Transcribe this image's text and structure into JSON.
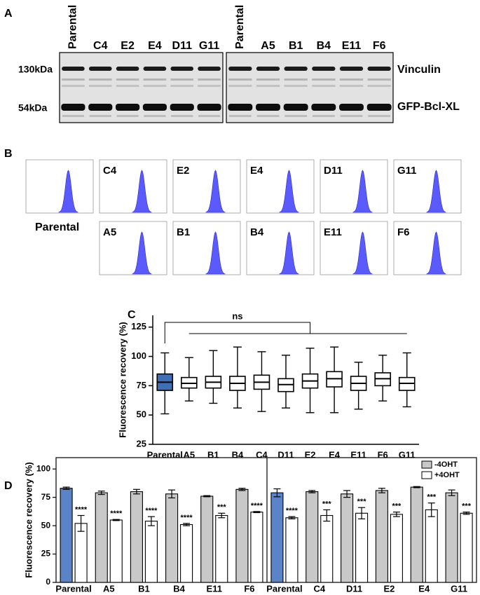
{
  "panel_labels": [
    "A",
    "B",
    "C",
    "D"
  ],
  "blot": {
    "left_lanes": [
      "Parental",
      "C4",
      "E2",
      "E4",
      "D11",
      "G11"
    ],
    "right_lanes": [
      "Parental",
      "A5",
      "B1",
      "B4",
      "E11",
      "F6"
    ],
    "markers": [
      "130kDa",
      "54kDa"
    ],
    "proteins": [
      "Vinculin",
      "GFP-Bcl-XL"
    ]
  },
  "flow": {
    "samples": [
      "Parental",
      "C4",
      "E2",
      "E4",
      "D11",
      "G11",
      "A5",
      "B1",
      "B4",
      "E11",
      "F6"
    ]
  },
  "chart_data": [
    {
      "type": "box",
      "y_label": "Fluorescence recovery (%)",
      "categories": [
        "Parental",
        "A5",
        "B1",
        "B4",
        "C4",
        "D11",
        "E2",
        "E4",
        "E11",
        "F6",
        "G11"
      ],
      "min": [
        51,
        62,
        60,
        56,
        53,
        56,
        52,
        52,
        55,
        62,
        57
      ],
      "q1": [
        71,
        73,
        73,
        71,
        72,
        70,
        73,
        74,
        71,
        75,
        71
      ],
      "median": [
        78,
        77,
        78,
        77,
        78,
        76,
        79,
        81,
        77,
        81,
        77
      ],
      "q3": [
        85,
        82,
        83,
        83,
        84,
        81,
        85,
        87,
        83,
        86,
        82
      ],
      "max": [
        103,
        99,
        105,
        108,
        104,
        101,
        107,
        108,
        95,
        101,
        103
      ],
      "colors": [
        "#3f6fb5",
        "#ffffff",
        "#ffffff",
        "#ffffff",
        "#ffffff",
        "#ffffff",
        "#ffffff",
        "#ffffff",
        "#ffffff",
        "#ffffff",
        "#ffffff"
      ],
      "ylim": [
        25,
        135
      ],
      "yticks": [
        25,
        50,
        75,
        100,
        125
      ],
      "annotation": "ns"
    },
    {
      "type": "grouped_bar",
      "y_label": "Fluorescence recovery (%)",
      "ylim": [
        0,
        110
      ],
      "yticks": [
        0,
        25,
        50,
        75,
        100
      ],
      "legend": "top-right",
      "panels": [
        {
          "categories": [
            "Parental",
            "A5",
            "B1",
            "B4",
            "E11",
            "F6"
          ],
          "series": [
            {
              "name": "-4OHT",
              "colors": [
                "#5b84c8",
                "#c8c8c8",
                "#c8c8c8",
                "#c8c8c8",
                "#c8c8c8",
                "#c8c8c8"
              ],
              "values": [
                83,
                79,
                80,
                78,
                76,
                82
              ],
              "errors": [
                1,
                1.5,
                2,
                3.5,
                0.5,
                1
              ]
            },
            {
              "name": "+4OHT",
              "colors": [
                "#ffffff",
                "#ffffff",
                "#ffffff",
                "#ffffff",
                "#ffffff",
                "#ffffff"
              ],
              "values": [
                52,
                55,
                54,
                51,
                59,
                62
              ],
              "errors": [
                7,
                0.5,
                4,
                1,
                2,
                0.5
              ],
              "significance": [
                "****",
                "****",
                "****",
                "****",
                "***",
                "****"
              ]
            }
          ]
        },
        {
          "categories": [
            "Parental",
            "C4",
            "D11",
            "E2",
            "E4",
            "G11"
          ],
          "series": [
            {
              "name": "-4OHT",
              "colors": [
                "#5b84c8",
                "#c8c8c8",
                "#c8c8c8",
                "#c8c8c8",
                "#c8c8c8",
                "#c8c8c8"
              ],
              "values": [
                79,
                80,
                78,
                81,
                84,
                79
              ],
              "errors": [
                3.5,
                1,
                3,
                2,
                0.5,
                2.5
              ]
            },
            {
              "name": "+4OHT",
              "colors": [
                "#ffffff",
                "#ffffff",
                "#ffffff",
                "#ffffff",
                "#ffffff",
                "#ffffff"
              ],
              "values": [
                57,
                59,
                61,
                60,
                64,
                61
              ],
              "errors": [
                1,
                5,
                5,
                2,
                6,
                1
              ],
              "significance": [
                "****",
                "***",
                "***",
                "***",
                "***",
                "***"
              ]
            }
          ]
        }
      ]
    }
  ]
}
